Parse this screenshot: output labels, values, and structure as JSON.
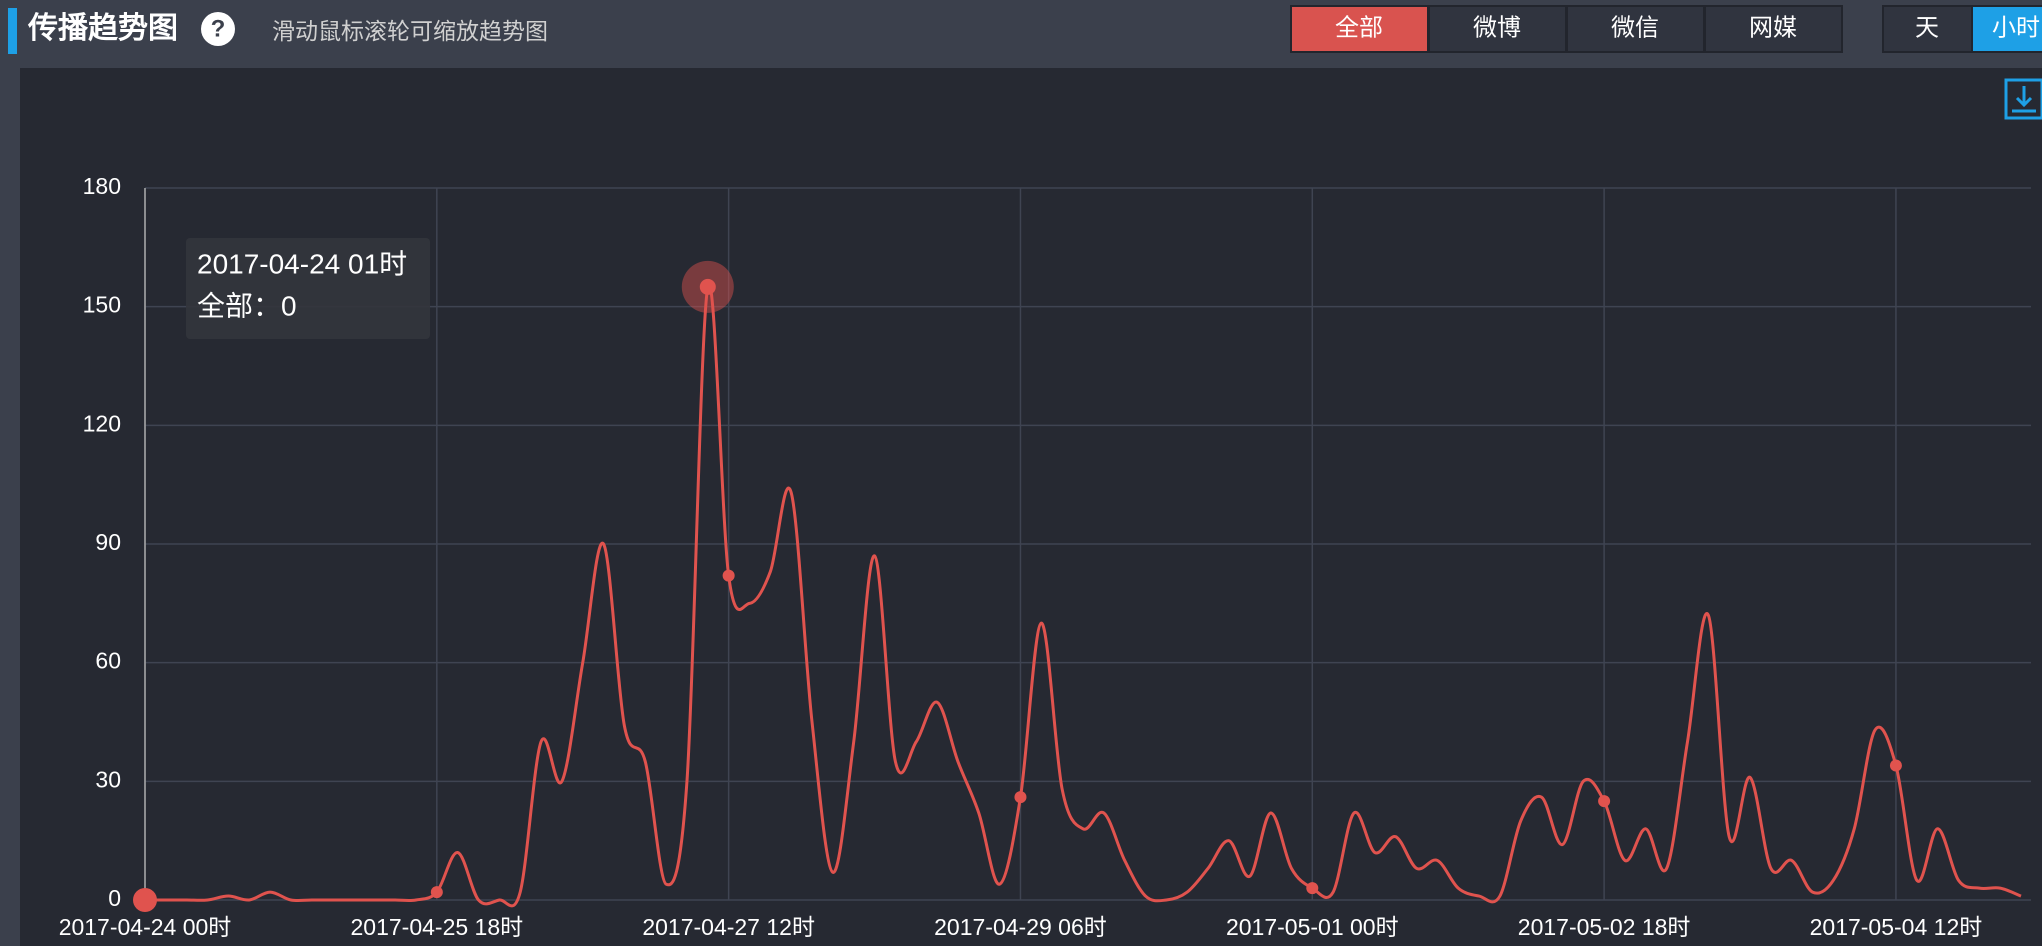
{
  "header": {
    "title": "传播趋势图",
    "help": "?",
    "subtitle": "滑动鼠标滚轮可缩放趋势图",
    "filters": [
      "全部",
      "微博",
      "微信",
      "网媒"
    ],
    "active_filter": 0,
    "granularity": [
      "天",
      "小时"
    ],
    "active_granularity": 1
  },
  "tooltip": {
    "time": "2017-04-24 01时",
    "value": "全部：0"
  },
  "chart_data": {
    "type": "line",
    "color": "#e0534e",
    "grid": true,
    "categories": [
      "2017-04-24 00时",
      null,
      null,
      null,
      null,
      null,
      null,
      null,
      null,
      null,
      null,
      null,
      null,
      null,
      "2017-04-25 18时",
      null,
      null,
      null,
      null,
      null,
      null,
      null,
      null,
      null,
      null,
      null,
      null,
      null,
      "2017-04-27 12时",
      null,
      null,
      null,
      null,
      null,
      null,
      null,
      null,
      null,
      null,
      null,
      null,
      null,
      "2017-04-29 06时",
      null,
      null,
      null,
      null,
      null,
      null,
      null,
      null,
      null,
      null,
      null,
      null,
      null,
      "2017-05-01 00时",
      null,
      null,
      null,
      null,
      null,
      null,
      null,
      null,
      null,
      null,
      null,
      null,
      null,
      "2017-05-02 18时",
      null,
      null,
      null,
      null,
      null,
      null,
      null,
      null,
      null,
      null,
      null,
      null,
      null,
      "2017-05-04 12时",
      null,
      null,
      null,
      null,
      null,
      null
    ],
    "series": [
      {
        "name": "全部",
        "color": "#e0534e",
        "values": [
          0,
          0,
          0,
          0,
          1,
          0,
          2,
          0,
          0,
          0,
          0,
          0,
          0,
          0,
          2,
          12,
          0,
          0,
          2,
          40,
          30,
          60,
          90,
          44,
          35,
          4,
          30,
          155,
          82,
          75,
          83,
          103,
          45,
          7,
          40,
          87,
          35,
          40,
          50,
          35,
          22,
          4,
          26,
          70,
          28,
          18,
          22,
          10,
          1,
          0,
          2,
          8,
          15,
          6,
          22,
          8,
          3,
          2,
          22,
          12,
          16,
          8,
          10,
          3,
          1,
          1,
          20,
          26,
          14,
          30,
          25,
          10,
          18,
          8,
          40,
          72,
          16,
          31,
          8,
          10,
          2,
          5,
          18,
          43,
          34,
          5,
          18,
          5,
          3,
          3,
          1
        ]
      }
    ],
    "ylim": [
      0,
      180
    ],
    "yticks": [
      0,
      30,
      60,
      90,
      120,
      150,
      180
    ]
  }
}
